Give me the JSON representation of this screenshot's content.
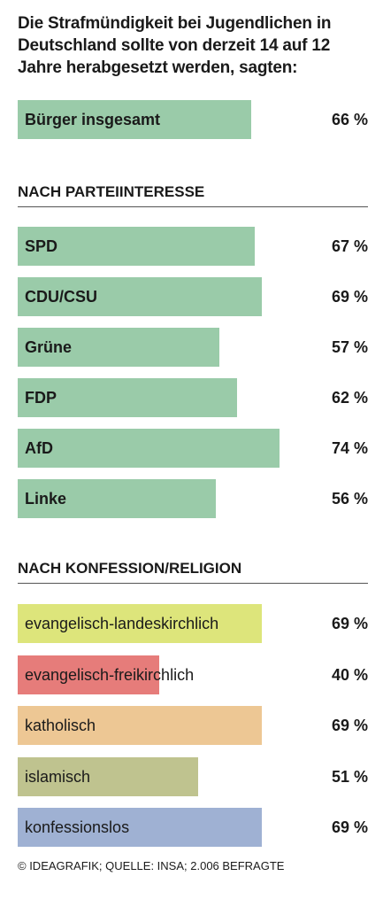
{
  "title": "Die Strafmündigkeit bei Jugendlichen in Deutschland sollte von derzeit 14 auf 12 Jahre herabgesetzt werden, sagten:",
  "footer": "© IDEAGRAFIK; QUELLE: INSA; 2.006 BEFRAGTE",
  "colors": {
    "party": "#9acba9",
    "evangelisch_landeskirchlich": "#dde57b",
    "evangelisch_freikirchlich": "#e67c7a",
    "katholisch": "#edc794",
    "islamisch": "#bfc38f",
    "konfessionslos": "#9fb1d3",
    "rule": "#555555"
  },
  "chart_data": {
    "type": "bar",
    "orientation": "horizontal",
    "unit": "%",
    "xlim": [
      0,
      100
    ],
    "groups": [
      {
        "heading": "",
        "categories": [
          "Bürger insgesamt"
        ],
        "values": [
          66
        ],
        "labels": [
          "66 %"
        ]
      },
      {
        "heading": "NACH PARTEIINTERESSE",
        "categories": [
          "SPD",
          "CDU/CSU",
          "Grüne",
          "FDP",
          "AfD",
          "Linke"
        ],
        "values": [
          67,
          69,
          57,
          62,
          74,
          56
        ],
        "labels": [
          "67 %",
          "69 %",
          "57 %",
          "62 %",
          "74 %",
          "56 %"
        ]
      },
      {
        "heading": "NACH KONFESSION/RELIGION",
        "categories": [
          "evangelisch-landeskirchlich",
          "evangelisch-freikirchlich",
          "katholisch",
          "islamisch",
          "konfessionslos"
        ],
        "values": [
          69,
          40,
          69,
          51,
          69
        ],
        "labels": [
          "69 %",
          "40 %",
          "69 %",
          "51 %",
          "69 %"
        ]
      }
    ]
  }
}
